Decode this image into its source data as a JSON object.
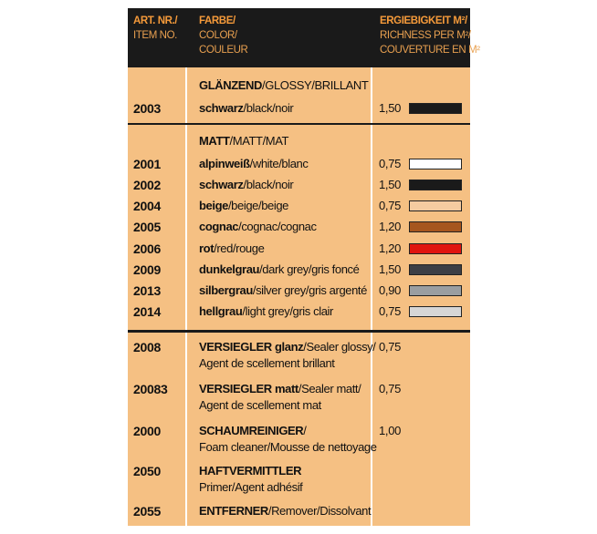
{
  "header": {
    "col1": [
      "ART. NR./",
      "ITEM NO."
    ],
    "col2": [
      "FARBE/",
      "COLOR/",
      "COULEUR"
    ],
    "col3": [
      "ERGIEBIGKEIT M²/",
      "RICHNESS PER M²/",
      "COUVERTURE EN M²"
    ]
  },
  "glossy": {
    "heading_bold": "GLÄNZEND",
    "heading_rest": "/GLOSSY/BRILLANT",
    "item": {
      "num": "2003",
      "bold": "schwarz",
      "rest": "/black/noir",
      "value": "1,50",
      "color": "#1a1a1a"
    }
  },
  "matt": {
    "heading_bold": "MATT",
    "heading_rest": "/MATT/MAT",
    "items": [
      {
        "num": "2001",
        "bold": "alpinweiß",
        "rest": "/white/blanc",
        "value": "0,75",
        "color": "#ffffff"
      },
      {
        "num": "2002",
        "bold": "schwarz",
        "rest": "/black/noir",
        "value": "1,50",
        "color": "#1a1a1a"
      },
      {
        "num": "2004",
        "bold": "beige",
        "rest": "/beige/beige",
        "value": "0,75",
        "color": "#f5cba0"
      },
      {
        "num": "2005",
        "bold": "cognac",
        "rest": "/cognac/cognac",
        "value": "1,20",
        "color": "#a6561e"
      },
      {
        "num": "2006",
        "bold": "rot",
        "rest": "/red/rouge",
        "value": "1,20",
        "color": "#e0140f"
      },
      {
        "num": "2009",
        "bold": "dunkelgrau",
        "rest": "/dark grey/gris foncé",
        "value": "1,50",
        "color": "#3d3f45"
      },
      {
        "num": "2013",
        "bold": "silbergrau",
        "rest": "/silver grey/gris argenté",
        "value": "0,90",
        "color": "#9a9ea1"
      },
      {
        "num": "2014",
        "bold": "hellgrau",
        "rest": "/light grey/gris clair",
        "value": "0,75",
        "color": "#d6d6d6"
      }
    ]
  },
  "accessories": [
    {
      "num": "2008",
      "bold": "VERSIEGLER glanz",
      "rest": "/Sealer glossy/",
      "line2": "Agent de scellement brillant",
      "value": "0,75"
    },
    {
      "num": "20083",
      "bold": "VERSIEGLER matt",
      "rest": "/Sealer matt/",
      "line2": "Agent de scellement mat",
      "value": "0,75"
    },
    {
      "num": "2000",
      "bold": "SCHAUMREINIGER",
      "rest": "/",
      "line2": "Foam cleaner/Mousse de nettoyage",
      "value": "1,00"
    },
    {
      "num": "2050",
      "bold": "HAFTVERMITTLER",
      "rest": "",
      "line2": "Primer/Agent adhésif",
      "value": ""
    },
    {
      "num": "2055",
      "bold": "ENTFERNER",
      "rest": "/Remover/Dissolvant",
      "line2": "",
      "value": ""
    }
  ]
}
